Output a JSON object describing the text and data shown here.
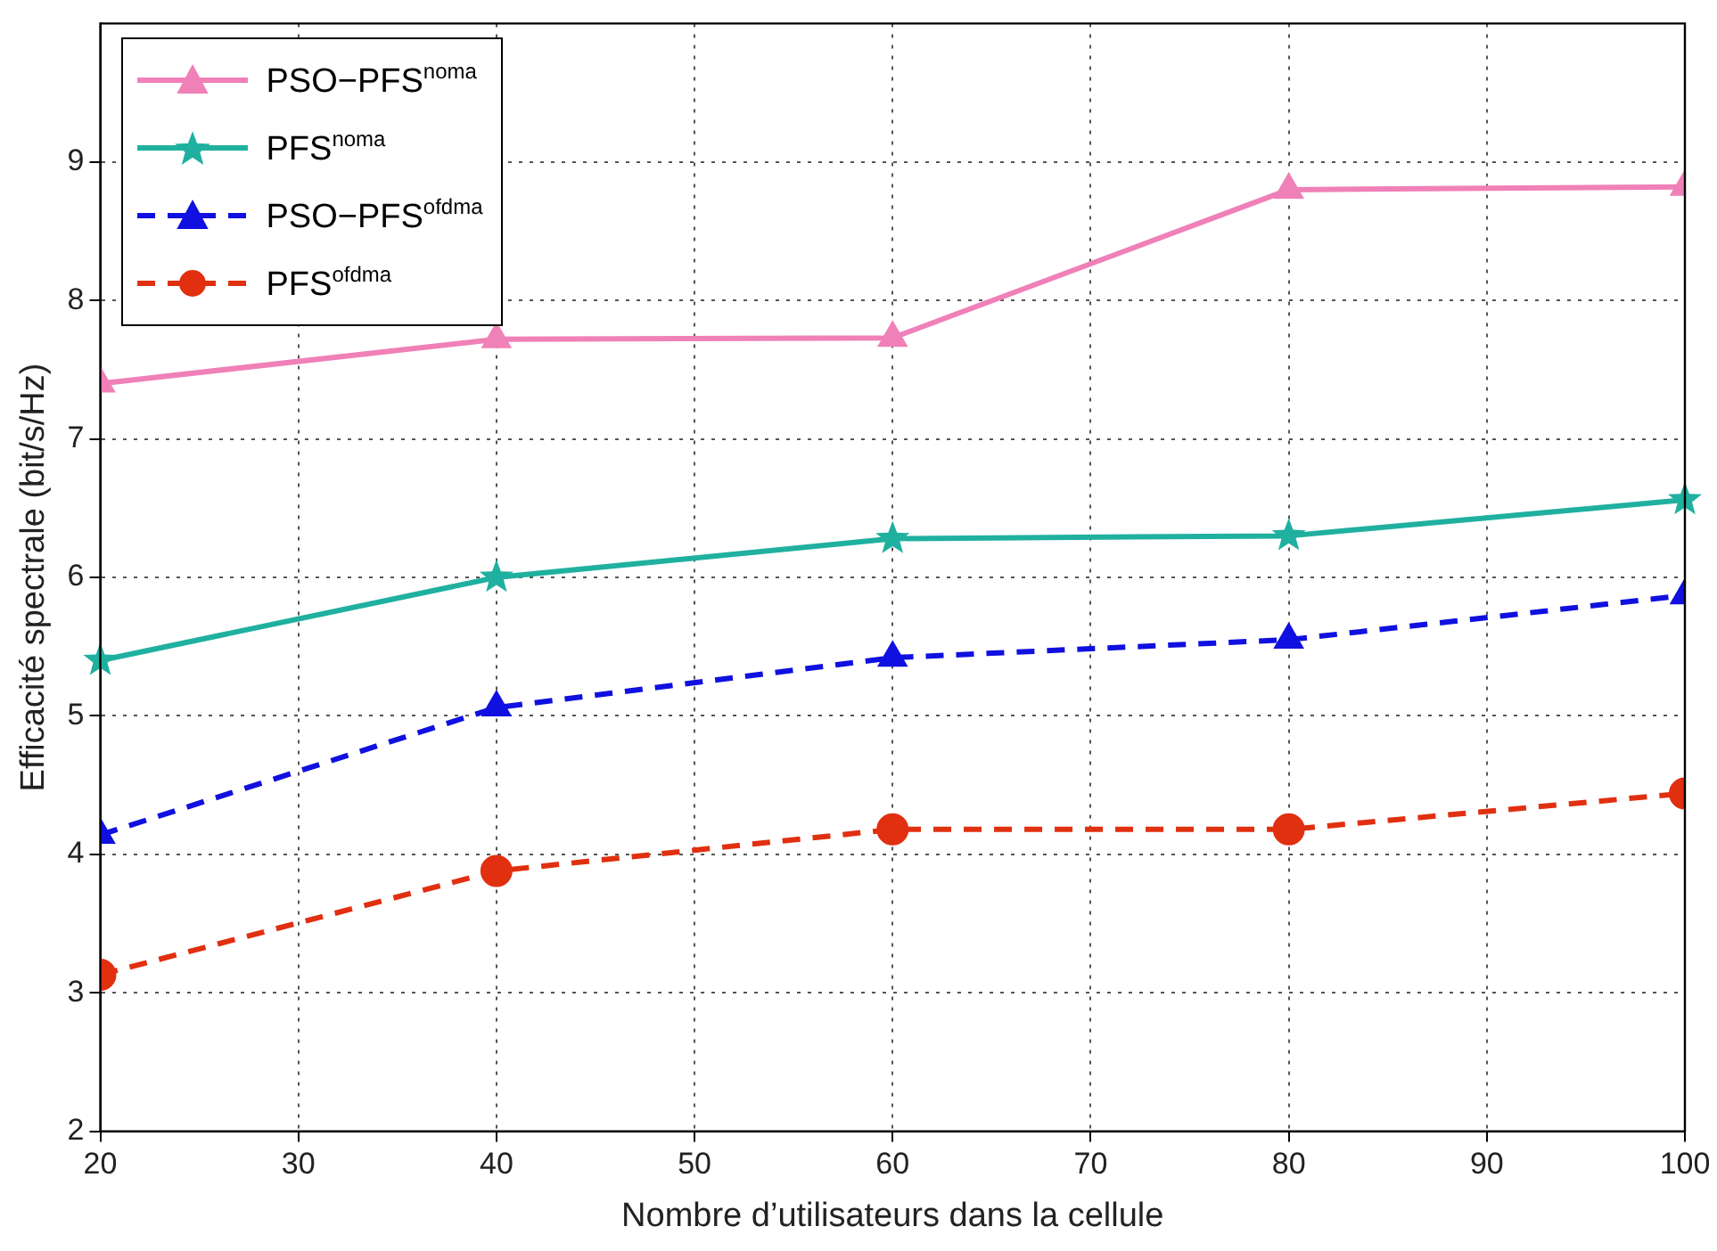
{
  "chart_data": {
    "type": "line",
    "xlabel": "Nombre d’utilisateurs dans la cellule",
    "ylabel": "Efficacité spectrale (bit/s/Hz)",
    "x": [
      20,
      40,
      60,
      80,
      100
    ],
    "xlim": [
      20,
      100
    ],
    "xticks": [
      20,
      30,
      40,
      50,
      60,
      70,
      80,
      90,
      100
    ],
    "ylim": [
      2,
      10
    ],
    "yticks": [
      2,
      3,
      4,
      5,
      6,
      7,
      8,
      9
    ],
    "grid": true,
    "legend": "top left",
    "series": [
      {
        "name": "PSO−PFS$^{noma}$",
        "color": "#f080b8",
        "marker": "triangle",
        "line_style": "solid",
        "values": [
          7.4,
          7.72,
          7.73,
          8.8,
          8.82
        ]
      },
      {
        "name": "PFS$^{noma}$",
        "color": "#20b0a0",
        "marker": "star",
        "line_style": "solid",
        "values": [
          5.4,
          6.0,
          6.28,
          6.3,
          6.56
        ]
      },
      {
        "name": "PSO−PFS$^{ofdma}$",
        "color": "#1010e0",
        "marker": "triangle",
        "line_style": "dashed",
        "values": [
          4.14,
          5.06,
          5.42,
          5.55,
          5.87
        ]
      },
      {
        "name": "PFS$^{ofdma}$",
        "color": "#e03010",
        "marker": "circle",
        "line_style": "dashed",
        "values": [
          3.13,
          3.88,
          4.18,
          4.18,
          4.44
        ]
      }
    ]
  }
}
